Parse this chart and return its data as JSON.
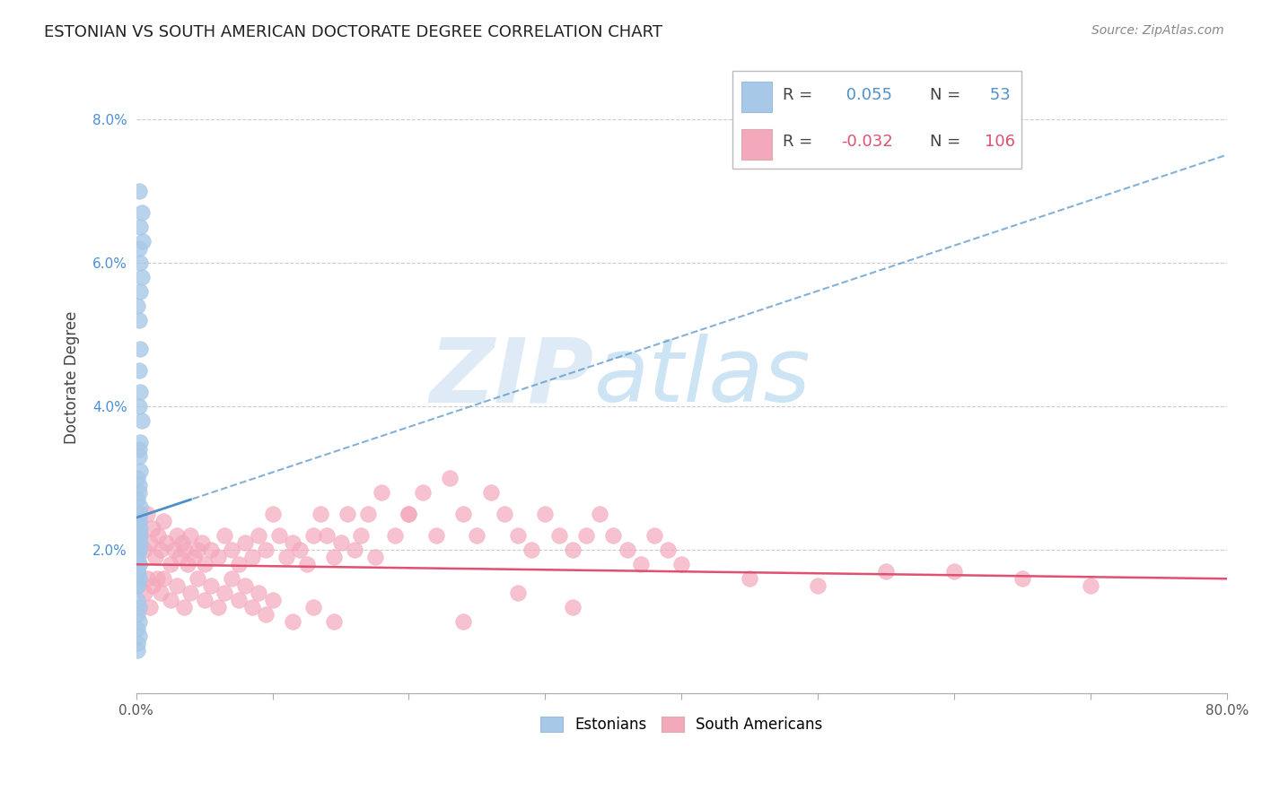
{
  "title": "ESTONIAN VS SOUTH AMERICAN DOCTORATE DEGREE CORRELATION CHART",
  "source": "Source: ZipAtlas.com",
  "ylabel": "Doctorate Degree",
  "xlim": [
    0.0,
    0.8
  ],
  "ylim": [
    0.0,
    0.088
  ],
  "xticks": [
    0.0,
    0.1,
    0.2,
    0.3,
    0.4,
    0.5,
    0.6,
    0.7,
    0.8
  ],
  "xticklabels": [
    "0.0%",
    "",
    "",
    "",
    "",
    "",
    "",
    "",
    "80.0%"
  ],
  "yticks": [
    0.0,
    0.02,
    0.04,
    0.06,
    0.08
  ],
  "yticklabels": [
    "",
    "2.0%",
    "4.0%",
    "6.0%",
    "8.0%"
  ],
  "blue_R": 0.055,
  "blue_N": 53,
  "pink_R": -0.032,
  "pink_N": 106,
  "blue_color": "#a8c8e8",
  "pink_color": "#f4a8bc",
  "blue_line_color": "#5090c8",
  "pink_line_color": "#e05070",
  "blue_trend_x0": 0.0,
  "blue_trend_y0": 0.0245,
  "blue_trend_x1": 0.8,
  "blue_trend_y1": 0.075,
  "pink_trend_x0": 0.0,
  "pink_trend_y0": 0.018,
  "pink_trend_x1": 0.8,
  "pink_trend_y1": 0.016,
  "watermark_zip": "ZIP",
  "watermark_atlas": "atlas",
  "blue_scatter_x": [
    0.002,
    0.004,
    0.003,
    0.005,
    0.002,
    0.003,
    0.004,
    0.003,
    0.001,
    0.002,
    0.003,
    0.002,
    0.003,
    0.002,
    0.004,
    0.003,
    0.002,
    0.001,
    0.002,
    0.003,
    0.002,
    0.003,
    0.002,
    0.001,
    0.003,
    0.002,
    0.001,
    0.002,
    0.003,
    0.002,
    0.001,
    0.002,
    0.001,
    0.002,
    0.001,
    0.002,
    0.003,
    0.002,
    0.001,
    0.002,
    0.001,
    0.002,
    0.001,
    0.002,
    0.001,
    0.001,
    0.002,
    0.001,
    0.002,
    0.001,
    0.002,
    0.001,
    0.001
  ],
  "blue_scatter_y": [
    0.07,
    0.067,
    0.065,
    0.063,
    0.062,
    0.06,
    0.058,
    0.056,
    0.054,
    0.052,
    0.048,
    0.045,
    0.042,
    0.04,
    0.038,
    0.035,
    0.033,
    0.03,
    0.028,
    0.026,
    0.034,
    0.031,
    0.029,
    0.027,
    0.025,
    0.024,
    0.023,
    0.022,
    0.021,
    0.02,
    0.019,
    0.018,
    0.017,
    0.016,
    0.015,
    0.024,
    0.023,
    0.022,
    0.021,
    0.02,
    0.019,
    0.018,
    0.017,
    0.016,
    0.015,
    0.013,
    0.012,
    0.011,
    0.01,
    0.009,
    0.008,
    0.007,
    0.006
  ],
  "pink_scatter_x": [
    0.003,
    0.006,
    0.008,
    0.01,
    0.012,
    0.014,
    0.016,
    0.018,
    0.02,
    0.022,
    0.025,
    0.028,
    0.03,
    0.032,
    0.034,
    0.036,
    0.038,
    0.04,
    0.042,
    0.045,
    0.048,
    0.05,
    0.055,
    0.06,
    0.065,
    0.07,
    0.075,
    0.08,
    0.085,
    0.09,
    0.095,
    0.1,
    0.105,
    0.11,
    0.115,
    0.12,
    0.125,
    0.13,
    0.135,
    0.14,
    0.145,
    0.15,
    0.155,
    0.16,
    0.165,
    0.17,
    0.175,
    0.18,
    0.19,
    0.2,
    0.21,
    0.22,
    0.23,
    0.24,
    0.25,
    0.26,
    0.27,
    0.28,
    0.29,
    0.3,
    0.31,
    0.32,
    0.33,
    0.34,
    0.35,
    0.36,
    0.37,
    0.38,
    0.39,
    0.4,
    0.006,
    0.008,
    0.01,
    0.012,
    0.015,
    0.018,
    0.02,
    0.025,
    0.03,
    0.035,
    0.04,
    0.045,
    0.05,
    0.055,
    0.06,
    0.065,
    0.07,
    0.075,
    0.08,
    0.085,
    0.09,
    0.095,
    0.1,
    0.115,
    0.13,
    0.145,
    0.45,
    0.5,
    0.55,
    0.6,
    0.65,
    0.7,
    0.32,
    0.28,
    0.24,
    0.2
  ],
  "pink_scatter_y": [
    0.022,
    0.02,
    0.025,
    0.021,
    0.023,
    0.019,
    0.022,
    0.02,
    0.024,
    0.021,
    0.018,
    0.02,
    0.022,
    0.019,
    0.021,
    0.02,
    0.018,
    0.022,
    0.019,
    0.02,
    0.021,
    0.018,
    0.02,
    0.019,
    0.022,
    0.02,
    0.018,
    0.021,
    0.019,
    0.022,
    0.02,
    0.025,
    0.022,
    0.019,
    0.021,
    0.02,
    0.018,
    0.022,
    0.025,
    0.022,
    0.019,
    0.021,
    0.025,
    0.02,
    0.022,
    0.025,
    0.019,
    0.028,
    0.022,
    0.025,
    0.028,
    0.022,
    0.03,
    0.025,
    0.022,
    0.028,
    0.025,
    0.022,
    0.02,
    0.025,
    0.022,
    0.02,
    0.022,
    0.025,
    0.022,
    0.02,
    0.018,
    0.022,
    0.02,
    0.018,
    0.014,
    0.016,
    0.012,
    0.015,
    0.016,
    0.014,
    0.016,
    0.013,
    0.015,
    0.012,
    0.014,
    0.016,
    0.013,
    0.015,
    0.012,
    0.014,
    0.016,
    0.013,
    0.015,
    0.012,
    0.014,
    0.011,
    0.013,
    0.01,
    0.012,
    0.01,
    0.016,
    0.015,
    0.017,
    0.017,
    0.016,
    0.015,
    0.012,
    0.014,
    0.01,
    0.025
  ]
}
